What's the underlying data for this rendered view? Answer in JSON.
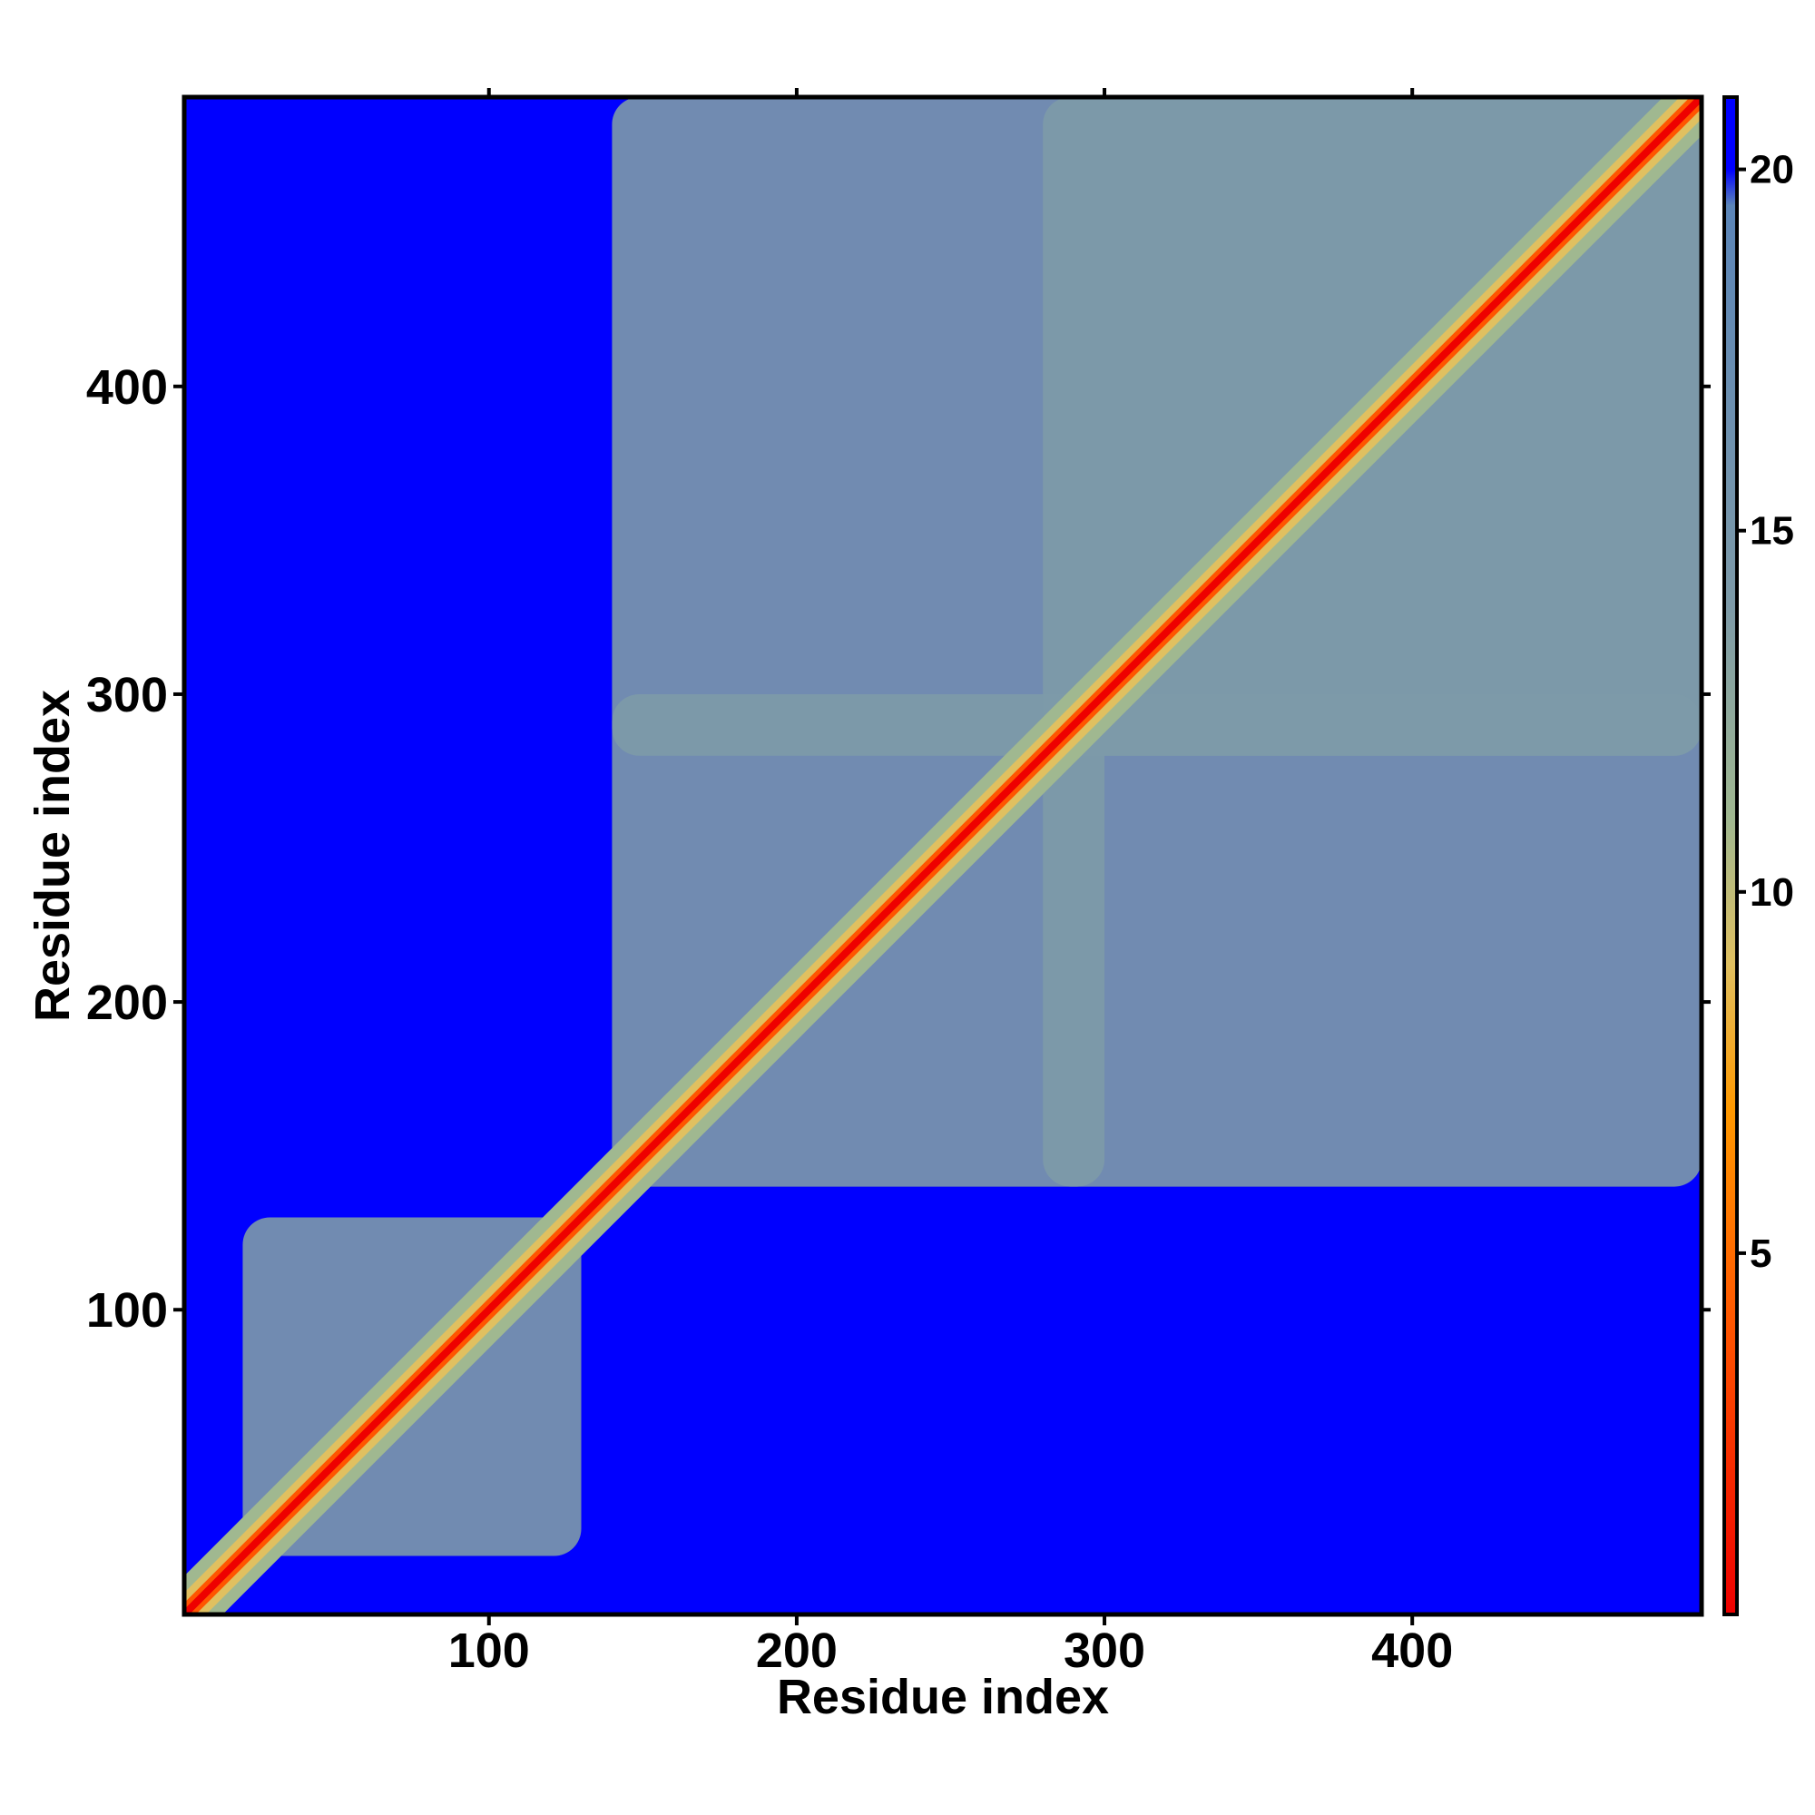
{
  "chart_data": {
    "type": "heatmap",
    "title": "",
    "xlabel": "Residue index",
    "ylabel": "Residue index",
    "xlim": [
      1,
      494
    ],
    "ylim": [
      1,
      494
    ],
    "x_ticks": [
      100,
      200,
      300,
      400
    ],
    "y_ticks": [
      100,
      200,
      300,
      400
    ],
    "colorbar": {
      "range": [
        0,
        21
      ],
      "ticks": [
        5,
        10,
        15,
        20
      ],
      "colors": [
        {
          "value": 0,
          "color": "#ee0000"
        },
        {
          "value": 4,
          "color": "#ff5500"
        },
        {
          "value": 7,
          "color": "#ff9900"
        },
        {
          "value": 9,
          "color": "#e0c060"
        },
        {
          "value": 11,
          "color": "#a0b890"
        },
        {
          "value": 14,
          "color": "#7d9aa8"
        },
        {
          "value": 19.5,
          "color": "#5b85b8"
        },
        {
          "value": 20,
          "color": "#0000ff"
        },
        {
          "value": 21,
          "color": "#0000ff"
        }
      ]
    },
    "matrix_description_regions": [
      {
        "name": "domain-1",
        "x": [
          20,
          130
        ],
        "y": [
          20,
          130
        ],
        "level": 15
      },
      {
        "name": "domain-2",
        "x": [
          140,
          300
        ],
        "y": [
          140,
          300
        ],
        "level": 15
      },
      {
        "name": "domain-3",
        "x": [
          280,
          494
        ],
        "y": [
          280,
          494
        ],
        "level": 15
      },
      {
        "name": "inter-2-3-upper",
        "x": [
          140,
          494
        ],
        "y": [
          280,
          494
        ],
        "level": 17
      },
      {
        "name": "inter-3-2-lower",
        "x": [
          280,
          494
        ],
        "y": [
          140,
          300
        ],
        "level": 17
      }
    ]
  }
}
